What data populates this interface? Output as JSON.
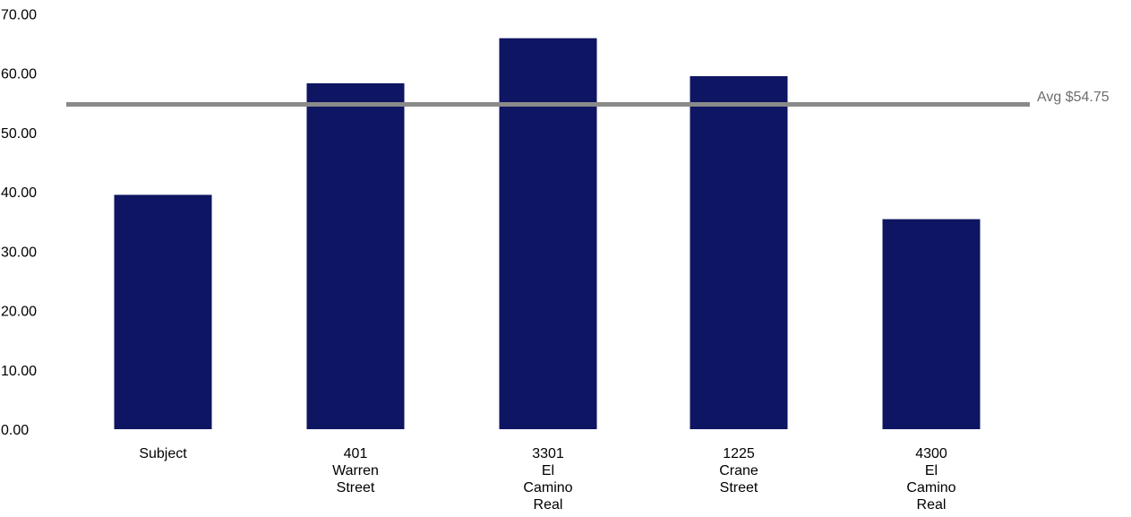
{
  "chart_data": {
    "type": "bar",
    "categories": [
      [
        "Subject"
      ],
      [
        "401",
        "Warren",
        "Street"
      ],
      [
        "3301",
        "El",
        "Camino",
        "Real"
      ],
      [
        "1225",
        "Crane",
        "Street"
      ],
      [
        "4300",
        "El",
        "Camino",
        "Real"
      ]
    ],
    "values": [
      39.5,
      58.3,
      65.9,
      59.5,
      35.4
    ],
    "ylim": [
      0,
      70
    ],
    "yticks": [
      "0.00",
      "10.00",
      "20.00",
      "30.00",
      "40.00",
      "50.00",
      "60.00",
      "70.00"
    ],
    "average": {
      "value": 54.75,
      "label": "Avg $54.75"
    },
    "grid": false,
    "colors": {
      "bar": "#0e1562",
      "avg_line": "#8a8a8a",
      "avg_text": "#6e6e6e"
    }
  }
}
